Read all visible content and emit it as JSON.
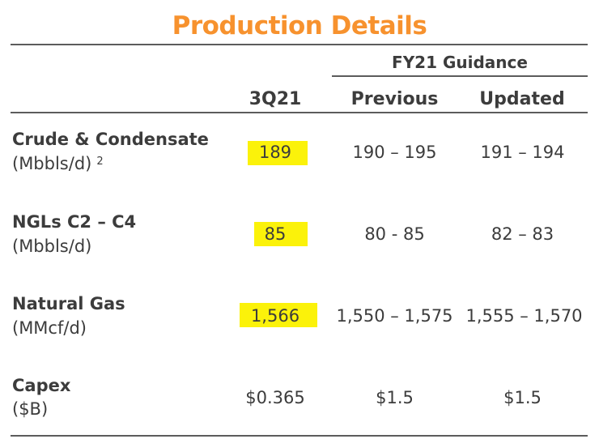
{
  "title": "Production Details",
  "header": {
    "group_label": "FY21 Guidance",
    "col_quarter": "3Q21",
    "col_previous": "Previous",
    "col_updated": "Updated"
  },
  "rows": [
    {
      "name": "Crude & Condensate",
      "unit": "(Mbbls/d)",
      "footnote": "2",
      "quarter": "189",
      "previous": "190 – 195",
      "updated": "191 – 194",
      "highlighted": true
    },
    {
      "name": "NGLs C2 – C4",
      "unit": "(Mbbls/d)",
      "footnote": "",
      "quarter": "85",
      "previous": "80 - 85",
      "updated": "82 – 83",
      "highlighted": true
    },
    {
      "name": "Natural Gas",
      "unit": "(MMcf/d)",
      "footnote": "",
      "quarter": "1,566",
      "previous": "1,550 – 1,575",
      "updated": "1,555 – 1,570",
      "highlighted": true
    },
    {
      "name": "Capex",
      "unit": "($B)",
      "footnote": "",
      "quarter": "$0.365",
      "previous": "$1.5",
      "updated": "$1.5",
      "highlighted": false
    }
  ],
  "colors": {
    "title": "#f7922e",
    "highlight": "#fbf20a",
    "text": "#3c3c3c",
    "rule": "#5c5c5c"
  }
}
